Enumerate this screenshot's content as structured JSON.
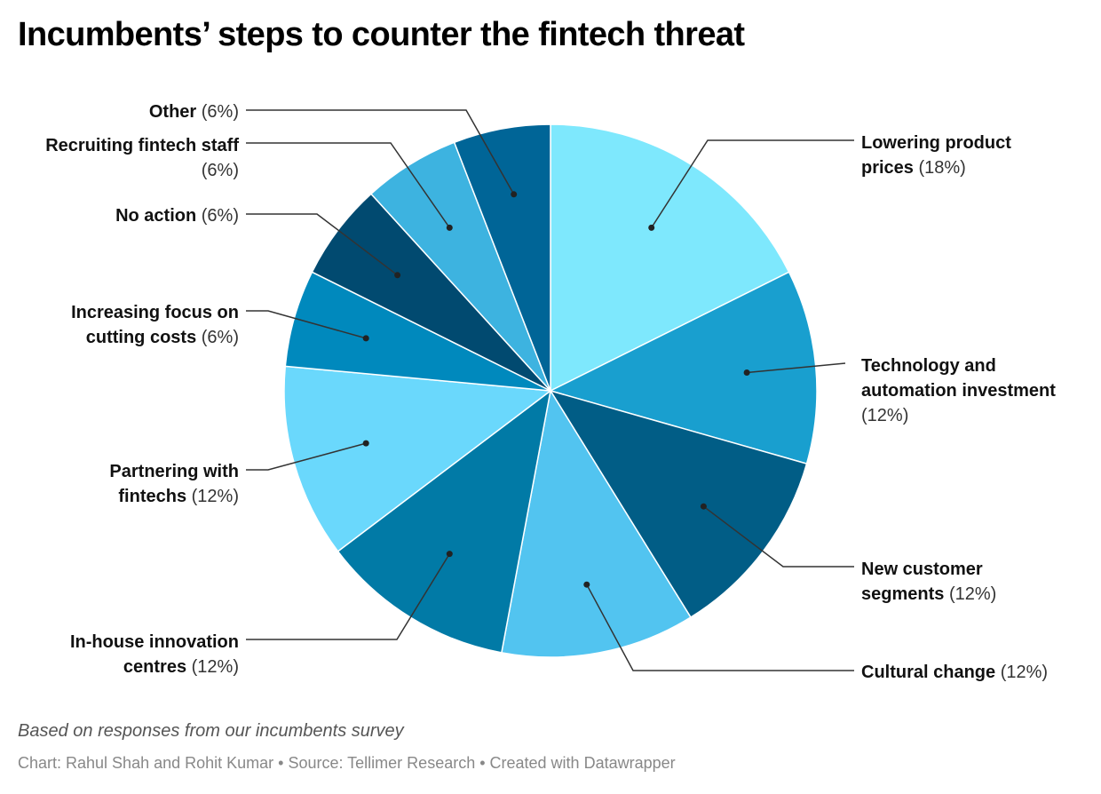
{
  "title": "Incumbents’ steps to counter the fintech threat",
  "note": "Based on responses from our incumbents survey",
  "footer": "Chart: Rahul Shah and Rohit Kumar • Source: Tellimer Research • Created with Datawrapper",
  "chart_data": {
    "type": "pie",
    "unit": "%",
    "slices": [
      {
        "label": "Lowering product prices",
        "value": 18,
        "color": "#7ee8fd"
      },
      {
        "label": "Technology and automation investment",
        "value": 12,
        "color": "#199fcf"
      },
      {
        "label": "New customer segments",
        "value": 12,
        "color": "#015d86"
      },
      {
        "label": "Cultural change",
        "value": 12,
        "color": "#52c4f0"
      },
      {
        "label": "In-house innovation centres",
        "value": 12,
        "color": "#017aa6"
      },
      {
        "label": "Partnering with fintechs",
        "value": 12,
        "color": "#6ad8fc"
      },
      {
        "label": "Increasing focus on cutting costs",
        "value": 6,
        "color": "#0089bd"
      },
      {
        "label": "No action",
        "value": 6,
        "color": "#014a70"
      },
      {
        "label": "Recruiting fintech staff",
        "value": 6,
        "color": "#3db3e0"
      },
      {
        "label": "Other",
        "value": 6,
        "color": "#006597"
      }
    ],
    "label_lines": [
      [
        "Lowering product",
        "prices (18%)"
      ],
      [
        "Technology and",
        "automation investment",
        "(12%)"
      ],
      [
        "New customer",
        "segments (12%)"
      ],
      [
        "Cultural change (12%)"
      ],
      [
        "In-house innovation",
        "centres (12%)"
      ],
      [
        "Partnering with",
        "fintechs (12%)"
      ],
      [
        "Increasing focus on",
        "cutting costs (6%)"
      ],
      [
        "No action (6%)"
      ],
      [
        "Recruiting fintech staff",
        "(6%)"
      ],
      [
        "Other (6%)"
      ]
    ]
  }
}
